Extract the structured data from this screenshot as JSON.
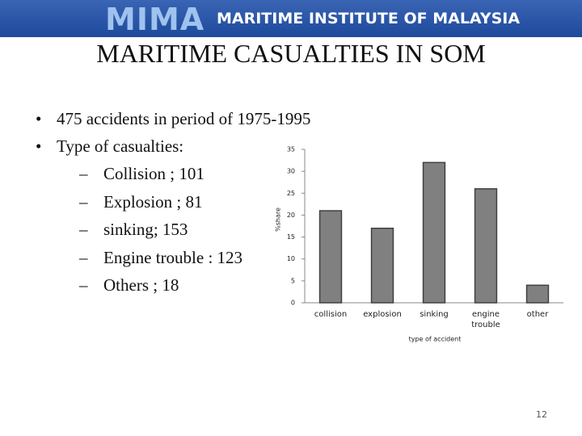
{
  "header": {
    "logo": "MIMA",
    "org": "MARITIME INSTITUTE OF MALAYSIA"
  },
  "title": "MARITIME CASUALTIES IN SOM",
  "bullets": [
    {
      "text": "475 accidents in period of 1975-1995"
    },
    {
      "text": "Type of casualties:",
      "items": [
        "Collision ; 101",
        "Explosion ; 81",
        "sinking;  153",
        "Engine trouble : 123",
        "Others ; 18"
      ]
    }
  ],
  "page_number": "12",
  "chart_data": {
    "type": "bar",
    "categories": [
      "collision",
      "explosion",
      "sinking",
      "engine trouble",
      "other"
    ],
    "values": [
      21,
      17,
      32,
      26,
      4
    ],
    "color": "#808080",
    "xlabel": "type of accident",
    "ylabel": "%share",
    "ylim": [
      0,
      35
    ],
    "yticks": [
      0,
      5,
      10,
      15,
      20,
      25,
      30,
      35
    ],
    "grid": false
  }
}
